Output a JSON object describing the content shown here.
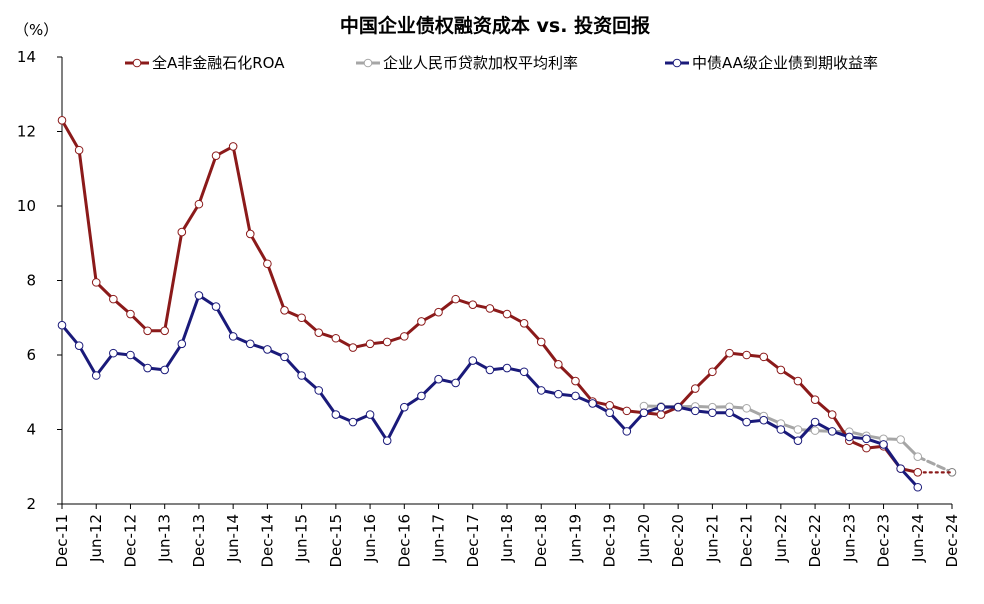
{
  "chart_data": {
    "type": "line",
    "title": "中国企业债权融资成本 vs. 投资回报",
    "ylabel": "（%）",
    "ylim": [
      2,
      14
    ],
    "yticks": [
      2,
      4,
      6,
      8,
      10,
      12,
      14
    ],
    "xlim": [
      2011.917,
      2024.917
    ],
    "xticks": [
      {
        "label": "Dec-11",
        "x": 2011.917
      },
      {
        "label": "Jun-12",
        "x": 2012.417
      },
      {
        "label": "Dec-12",
        "x": 2012.917
      },
      {
        "label": "Jun-13",
        "x": 2013.417
      },
      {
        "label": "Dec-13",
        "x": 2013.917
      },
      {
        "label": "Jun-14",
        "x": 2014.417
      },
      {
        "label": "Dec-14",
        "x": 2014.917
      },
      {
        "label": "Jun-15",
        "x": 2015.417
      },
      {
        "label": "Dec-15",
        "x": 2015.917
      },
      {
        "label": "Jun-16",
        "x": 2016.417
      },
      {
        "label": "Dec-16",
        "x": 2016.917
      },
      {
        "label": "Jun-17",
        "x": 2017.417
      },
      {
        "label": "Dec-17",
        "x": 2017.917
      },
      {
        "label": "Jun-18",
        "x": 2018.417
      },
      {
        "label": "Dec-18",
        "x": 2018.917
      },
      {
        "label": "Jun-19",
        "x": 2019.417
      },
      {
        "label": "Dec-19",
        "x": 2019.917
      },
      {
        "label": "Jun-20",
        "x": 2020.417
      },
      {
        "label": "Dec-20",
        "x": 2020.917
      },
      {
        "label": "Jun-21",
        "x": 2021.417
      },
      {
        "label": "Dec-21",
        "x": 2021.917
      },
      {
        "label": "Jun-22",
        "x": 2022.417
      },
      {
        "label": "Dec-22",
        "x": 2022.917
      },
      {
        "label": "Jun-23",
        "x": 2023.417
      },
      {
        "label": "Dec-23",
        "x": 2023.917
      },
      {
        "label": "Jun-24",
        "x": 2024.417
      },
      {
        "label": "Dec-24",
        "x": 2024.917
      }
    ],
    "legend_position": "top",
    "series": [
      {
        "name": "全A非金融石化ROA",
        "color": "#8b1a1a",
        "points": [
          [
            2011.917,
            12.3
          ],
          [
            2012.167,
            11.5
          ],
          [
            2012.417,
            7.95
          ],
          [
            2012.667,
            7.5
          ],
          [
            2012.917,
            7.1
          ],
          [
            2013.167,
            6.65
          ],
          [
            2013.417,
            6.65
          ],
          [
            2013.667,
            9.3
          ],
          [
            2013.917,
            10.05
          ],
          [
            2014.167,
            11.35
          ],
          [
            2014.417,
            11.6
          ],
          [
            2014.667,
            9.25
          ],
          [
            2014.917,
            8.45
          ],
          [
            2015.167,
            7.2
          ],
          [
            2015.417,
            7.0
          ],
          [
            2015.667,
            6.6
          ],
          [
            2015.917,
            6.45
          ],
          [
            2016.167,
            6.2
          ],
          [
            2016.417,
            6.3
          ],
          [
            2016.667,
            6.35
          ],
          [
            2016.917,
            6.5
          ],
          [
            2017.167,
            6.9
          ],
          [
            2017.417,
            7.15
          ],
          [
            2017.667,
            7.5
          ],
          [
            2017.917,
            7.35
          ],
          [
            2018.167,
            7.25
          ],
          [
            2018.417,
            7.1
          ],
          [
            2018.667,
            6.85
          ],
          [
            2018.917,
            6.35
          ],
          [
            2019.167,
            5.75
          ],
          [
            2019.417,
            5.3
          ],
          [
            2019.667,
            4.75
          ],
          [
            2019.917,
            4.65
          ],
          [
            2020.167,
            4.5
          ],
          [
            2020.417,
            4.45
          ],
          [
            2020.667,
            4.4
          ],
          [
            2020.917,
            4.6
          ],
          [
            2021.167,
            5.1
          ],
          [
            2021.417,
            5.55
          ],
          [
            2021.667,
            6.05
          ],
          [
            2021.917,
            6.0
          ],
          [
            2022.167,
            5.95
          ],
          [
            2022.417,
            5.6
          ],
          [
            2022.667,
            5.3
          ],
          [
            2022.917,
            4.8
          ],
          [
            2023.167,
            4.4
          ],
          [
            2023.417,
            3.7
          ],
          [
            2023.667,
            3.5
          ],
          [
            2023.917,
            3.55
          ],
          [
            2024.167,
            2.95
          ],
          [
            2024.417,
            2.85
          ]
        ],
        "projected_points": [
          [
            2024.417,
            2.85
          ],
          [
            2024.917,
            2.85
          ]
        ]
      },
      {
        "name": "企业人民币贷款加权平均利率",
        "color": "#a6a6a6",
        "points": [
          [
            2020.417,
            4.63
          ],
          [
            2020.667,
            4.62
          ],
          [
            2020.917,
            4.61
          ],
          [
            2021.167,
            4.62
          ],
          [
            2021.417,
            4.6
          ],
          [
            2021.667,
            4.61
          ],
          [
            2021.917,
            4.57
          ],
          [
            2022.167,
            4.36
          ],
          [
            2022.417,
            4.16
          ],
          [
            2022.667,
            4.0
          ],
          [
            2022.917,
            3.97
          ],
          [
            2023.167,
            3.95
          ],
          [
            2023.417,
            3.94
          ],
          [
            2023.667,
            3.83
          ],
          [
            2023.917,
            3.75
          ],
          [
            2024.167,
            3.73
          ],
          [
            2024.417,
            3.27
          ]
        ],
        "projected_points": [
          [
            2024.417,
            3.27
          ],
          [
            2024.917,
            2.85
          ]
        ]
      },
      {
        "name": "中债AA级企业债到期收益率",
        "color": "#1a1a7a",
        "points": [
          [
            2011.917,
            6.8
          ],
          [
            2012.167,
            6.25
          ],
          [
            2012.417,
            5.45
          ],
          [
            2012.667,
            6.05
          ],
          [
            2012.917,
            6.0
          ],
          [
            2013.167,
            5.65
          ],
          [
            2013.417,
            5.6
          ],
          [
            2013.667,
            6.3
          ],
          [
            2013.917,
            7.6
          ],
          [
            2014.167,
            7.3
          ],
          [
            2014.417,
            6.5
          ],
          [
            2014.667,
            6.3
          ],
          [
            2014.917,
            6.15
          ],
          [
            2015.167,
            5.95
          ],
          [
            2015.417,
            5.45
          ],
          [
            2015.667,
            5.05
          ],
          [
            2015.917,
            4.4
          ],
          [
            2016.167,
            4.2
          ],
          [
            2016.417,
            4.4
          ],
          [
            2016.667,
            3.7
          ],
          [
            2016.917,
            4.6
          ],
          [
            2017.167,
            4.9
          ],
          [
            2017.417,
            5.35
          ],
          [
            2017.667,
            5.25
          ],
          [
            2017.917,
            5.85
          ],
          [
            2018.167,
            5.6
          ],
          [
            2018.417,
            5.65
          ],
          [
            2018.667,
            5.55
          ],
          [
            2018.917,
            5.05
          ],
          [
            2019.167,
            4.95
          ],
          [
            2019.417,
            4.9
          ],
          [
            2019.667,
            4.7
          ],
          [
            2019.917,
            4.45
          ],
          [
            2020.167,
            3.95
          ],
          [
            2020.417,
            4.45
          ],
          [
            2020.667,
            4.6
          ],
          [
            2020.917,
            4.6
          ],
          [
            2021.167,
            4.5
          ],
          [
            2021.417,
            4.45
          ],
          [
            2021.667,
            4.45
          ],
          [
            2021.917,
            4.2
          ],
          [
            2022.167,
            4.25
          ],
          [
            2022.417,
            4.0
          ],
          [
            2022.667,
            3.7
          ],
          [
            2022.917,
            4.2
          ],
          [
            2023.167,
            3.95
          ],
          [
            2023.417,
            3.8
          ],
          [
            2023.667,
            3.75
          ],
          [
            2023.917,
            3.6
          ],
          [
            2024.167,
            2.95
          ],
          [
            2024.417,
            2.45
          ]
        ]
      }
    ]
  }
}
